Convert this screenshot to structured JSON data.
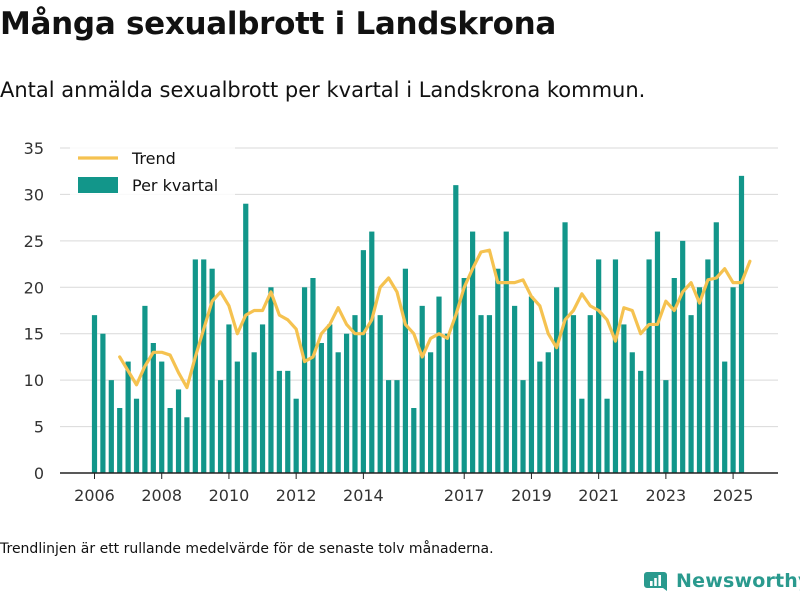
{
  "title": "Många sexualbrott i Landskrona",
  "subtitle": "Antal anmälda sexualbrott per kvartal i Landskrona kommun.",
  "footnote": "Trendlinjen är ett rullande medelvärde för de senaste tolv månaderna.",
  "brand": {
    "name": "Newsworthy",
    "color": "#2a9a8e"
  },
  "colors": {
    "bar": "#12968a",
    "trend": "#f5c250",
    "grid": "#d9d9d9",
    "axis": "#222222"
  },
  "chart_data": {
    "type": "bar",
    "title": "Många sexualbrott i Landskrona",
    "xlabel": "",
    "ylabel": "",
    "ylim": [
      0,
      35
    ],
    "yticks": [
      0,
      5,
      10,
      15,
      20,
      25,
      30,
      35
    ],
    "x_tick_labels": [
      "2006",
      "2008",
      "2010",
      "2012",
      "2014",
      "2017",
      "2019",
      "2021",
      "2023",
      "2025"
    ],
    "x_tick_indices": [
      0,
      8,
      16,
      24,
      32,
      44,
      52,
      60,
      68,
      76
    ],
    "legend": {
      "position": "top-left",
      "entries": [
        "Trend",
        "Per kvartal"
      ]
    },
    "series": [
      {
        "name": "Per kvartal",
        "type": "bar",
        "values": [
          17,
          15,
          10,
          7,
          12,
          8,
          18,
          14,
          12,
          7,
          9,
          6,
          23,
          23,
          22,
          10,
          16,
          12,
          29,
          13,
          16,
          20,
          11,
          11,
          8,
          20,
          21,
          14,
          16,
          13,
          15,
          17,
          24,
          26,
          17,
          10,
          10,
          22,
          7,
          18,
          13,
          19,
          15,
          31,
          21,
          26,
          17,
          17,
          22,
          26,
          18,
          10,
          19,
          12,
          13,
          20,
          27,
          17,
          8,
          17,
          23,
          8,
          23,
          16,
          13,
          11,
          23,
          26,
          10,
          21,
          25,
          17,
          20,
          23,
          27,
          12,
          20,
          32
        ]
      },
      {
        "name": "Trend",
        "type": "line",
        "start_index": 3,
        "values": [
          12.5,
          11.0,
          9.5,
          11.5,
          13.0,
          13.0,
          12.7,
          10.8,
          9.2,
          12.5,
          15.5,
          18.5,
          19.5,
          18.0,
          15.0,
          17.0,
          17.5,
          17.5,
          19.5,
          17.0,
          16.5,
          15.5,
          12.0,
          12.5,
          15.0,
          16.0,
          17.8,
          16.0,
          15.0,
          15.0,
          16.5,
          20.0,
          21.0,
          19.5,
          16.0,
          15.0,
          12.5,
          14.5,
          15.0,
          14.5,
          17.0,
          20.0,
          22.0,
          23.8,
          24.0,
          20.5,
          20.5,
          20.5,
          20.8,
          19.0,
          18.0,
          15.0,
          13.5,
          16.5,
          17.5,
          19.3,
          18.0,
          17.5,
          16.5,
          14.2,
          17.8,
          17.5,
          15.0,
          16.0,
          16.0,
          18.5,
          17.5,
          19.5,
          20.5,
          18.3,
          20.8,
          21.0,
          22.0,
          20.5,
          20.5,
          22.8
        ]
      }
    ]
  }
}
